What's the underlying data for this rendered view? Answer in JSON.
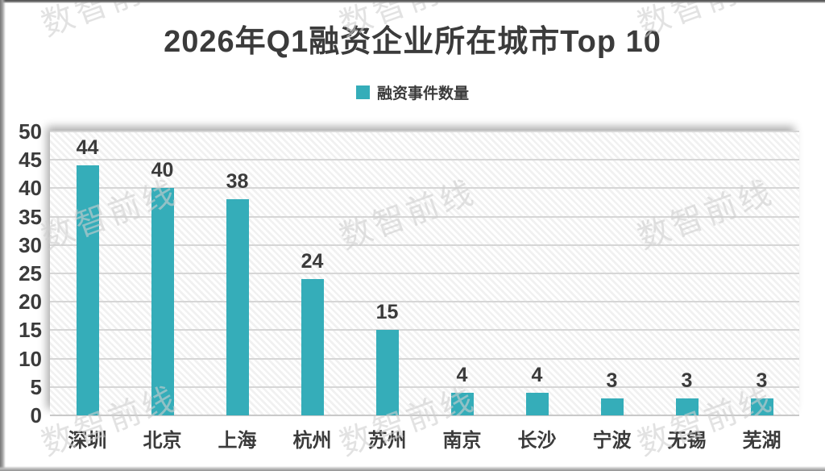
{
  "page": {
    "title": "2026年Q1融资企业所在城市Top 10"
  },
  "legend": {
    "label": "融资事件数量"
  },
  "watermark": {
    "text": "数智前线"
  },
  "colors": {
    "bar": "#35ADB9",
    "text": "#3B3B3B",
    "gridline": "#D6D6D6",
    "baseline": "#C9C9C9",
    "watermark": "rgba(206,206,206,0.6)"
  },
  "chart_data": {
    "type": "bar",
    "title": "2026年Q1融资企业所在城市Top 10",
    "categories": [
      "深圳",
      "北京",
      "上海",
      "杭州",
      "苏州",
      "南京",
      "长沙",
      "宁波",
      "无锡",
      "芜湖"
    ],
    "series": [
      {
        "name": "融资事件数量",
        "values": [
          44,
          40,
          38,
          24,
          15,
          4,
          4,
          3,
          3,
          3
        ]
      }
    ],
    "values": [
      44,
      40,
      38,
      24,
      15,
      4,
      4,
      3,
      3,
      3
    ],
    "data_labels": [
      44,
      40,
      38,
      24,
      15,
      4,
      4,
      3,
      3,
      3
    ],
    "xlabel": "",
    "ylabel": "",
    "ylim": [
      0,
      50
    ],
    "yticks": [
      0,
      5,
      10,
      15,
      20,
      25,
      30,
      35,
      40,
      45,
      50
    ],
    "grid": "horizontal",
    "legend_position": "top",
    "plot_background": "diagonal-hatch",
    "watermark_text": "数智前线"
  }
}
